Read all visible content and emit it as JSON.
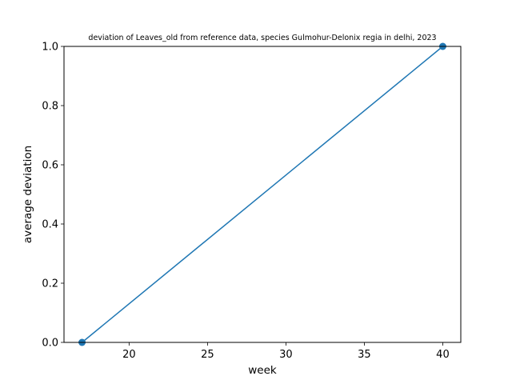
{
  "chart_data": {
    "type": "line",
    "title": "deviation of Leaves_old from reference data, species Gulmohur-Delonix regia in delhi, 2023",
    "xlabel": "week",
    "ylabel": "average deviation",
    "xlim": [
      15.85,
      41.15
    ],
    "ylim": [
      0,
      1
    ],
    "xticks": [
      "20",
      "25",
      "30",
      "35",
      "40"
    ],
    "xtick_values": [
      20,
      25,
      30,
      35,
      40
    ],
    "yticks": [
      "0.0",
      "0.2",
      "0.4",
      "0.6",
      "0.8",
      "1.0"
    ],
    "ytick_values": [
      0,
      0.2,
      0.4,
      0.6,
      0.8,
      1.0
    ],
    "grid": false,
    "series": [
      {
        "color": "#1f77b4",
        "marker": "circle",
        "x": [
          17,
          40
        ],
        "y": [
          0,
          1
        ]
      }
    ]
  }
}
